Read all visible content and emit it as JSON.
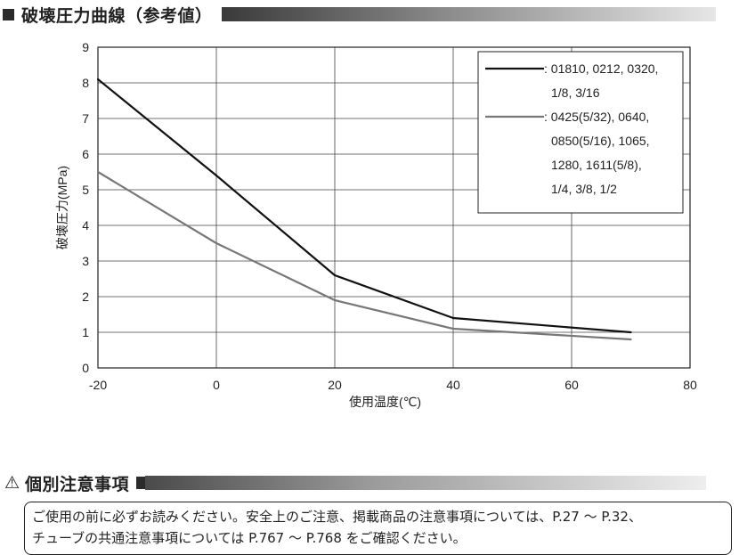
{
  "header": {
    "title": "破壊圧力曲線（参考値）"
  },
  "chart_data": {
    "type": "line",
    "xlabel": "使用温度(℃)",
    "ylabel": "破壊圧力(MPa)",
    "xlim": [
      -20,
      80
    ],
    "ylim": [
      0,
      9
    ],
    "x_ticks": [
      "-20",
      "0",
      "20",
      "40",
      "60",
      "80"
    ],
    "y_ticks": [
      "0",
      "1",
      "2",
      "3",
      "4",
      "5",
      "6",
      "7",
      "8",
      "9"
    ],
    "grid": true,
    "legend_position": "top-right",
    "series": [
      {
        "legend_lines": [
          ": 01810, 0212, 0320,",
          "1/8, 3/16"
        ],
        "color": "#111111",
        "points": [
          [
            -20,
            8.1
          ],
          [
            0,
            5.4
          ],
          [
            20,
            2.6
          ],
          [
            40,
            1.4
          ],
          [
            70,
            1.0
          ]
        ]
      },
      {
        "legend_lines": [
          ": 0425(5/32), 0640,",
          "0850(5/16), 1065,",
          "1280, 1611(5/8),",
          "1/4, 3/8, 1/2"
        ],
        "color": "#777777",
        "points": [
          [
            -20,
            5.5
          ],
          [
            0,
            3.5
          ],
          [
            20,
            1.9
          ],
          [
            40,
            1.1
          ],
          [
            70,
            0.8
          ]
        ]
      }
    ]
  },
  "caution": {
    "warning_symbol": "⚠",
    "title": "個別注意事項",
    "line1": "ご使用の前に必ずお読みください。安全上のご注意、掲載商品の注意事項については、P.27 ～ P.32、",
    "line2": "チューブの共通注意事項については P.767 ～ P.768 をご確認ください。"
  }
}
